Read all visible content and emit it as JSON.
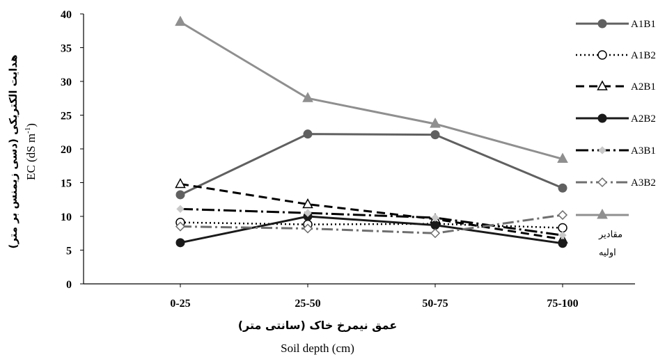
{
  "chart_data": {
    "type": "line",
    "categories": [
      "0-25",
      "25-50",
      "50-75",
      "75-100"
    ],
    "ylim": [
      0,
      40
    ],
    "yticks": [
      0,
      5,
      10,
      15,
      20,
      25,
      30,
      35,
      40
    ],
    "xlabel_fa": "عمق نیمرخ خاک (سانتی متر)",
    "xlabel_en": "Soil depth (cm)",
    "ylabel_fa": "هدایت الکتریکی (دسی زیمنس بر متر)",
    "ylabel_en": "EC (dS m",
    "ylabel_en_sup": "-1",
    "ylabel_en_end": ")",
    "legend_position": "right",
    "grid": false,
    "series": [
      {
        "name": "A1B1",
        "values": [
          13.2,
          22.2,
          22.1,
          14.2
        ],
        "color": "#606060",
        "dash": "",
        "width": 3,
        "marker": "circle-filled"
      },
      {
        "name": "A1B2",
        "values": [
          9.1,
          8.8,
          8.9,
          8.3
        ],
        "color": "#000000",
        "dash": "2 4",
        "width": 2.5,
        "marker": "circle-open"
      },
      {
        "name": "A2B1",
        "values": [
          14.8,
          11.8,
          9.6,
          6.6
        ],
        "color": "#000000",
        "dash": "12 7",
        "width": 3,
        "marker": "triangle-open"
      },
      {
        "name": "A2B2",
        "values": [
          6.1,
          10.0,
          8.7,
          6.0
        ],
        "color": "#1a1a1a",
        "dash": "",
        "width": 3,
        "marker": "circle-filled"
      },
      {
        "name": "A3B1",
        "values": [
          11.1,
          10.5,
          9.8,
          7.2
        ],
        "color": "#000000",
        "dash": "18 5 3 5",
        "width": 3,
        "marker": "diamond-filled-light"
      },
      {
        "name": "A3B2",
        "values": [
          8.5,
          8.2,
          7.5,
          10.2
        ],
        "color": "#6f6f6f",
        "dash": "16 5 3 5",
        "width": 3,
        "marker": "diamond-open"
      },
      {
        "name": "مقادیر",
        "name_line2": "اولیه",
        "values": [
          38.8,
          27.5,
          23.7,
          18.5
        ],
        "color": "#8f8f8f",
        "dash": "",
        "width": 3,
        "marker": "triangle-filled"
      }
    ]
  }
}
